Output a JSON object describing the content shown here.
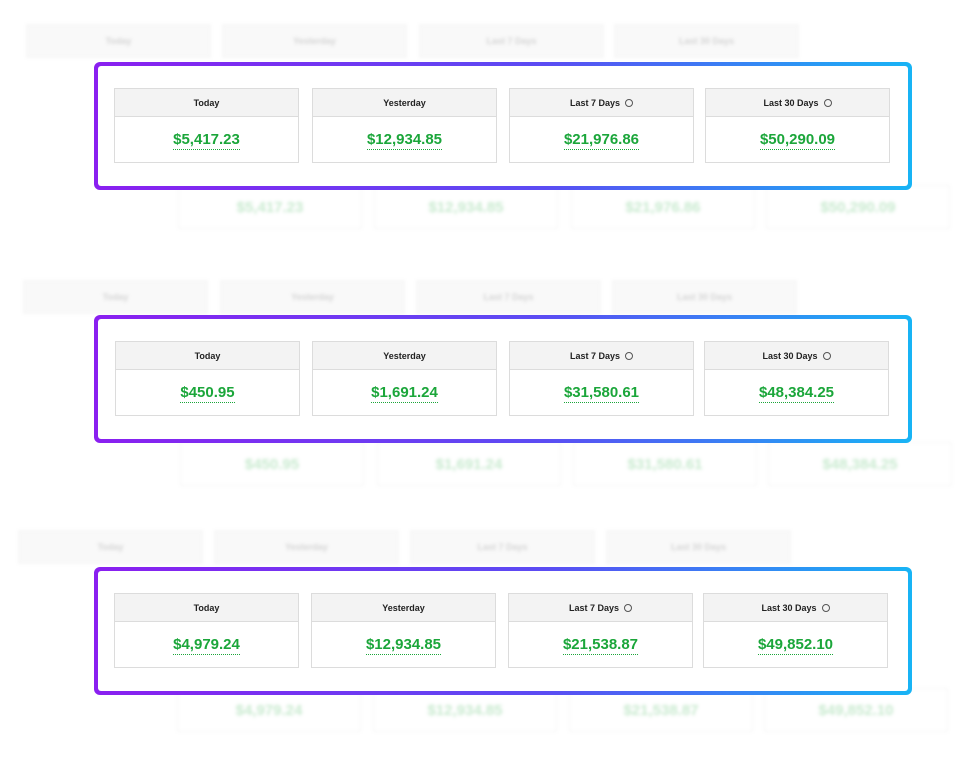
{
  "panels": [
    {
      "cards": [
        {
          "label": "Today",
          "value": "$5,417.23",
          "has_clock_icon": false
        },
        {
          "label": "Yesterday",
          "value": "$12,934.85",
          "has_clock_icon": false
        },
        {
          "label": "Last 7 Days",
          "value": "$21,976.86",
          "has_clock_icon": true
        },
        {
          "label": "Last 30 Days",
          "value": "$50,290.09",
          "has_clock_icon": true
        }
      ]
    },
    {
      "cards": [
        {
          "label": "Today",
          "value": "$450.95",
          "has_clock_icon": false
        },
        {
          "label": "Yesterday",
          "value": "$1,691.24",
          "has_clock_icon": false
        },
        {
          "label": "Last 7 Days",
          "value": "$31,580.61",
          "has_clock_icon": true
        },
        {
          "label": "Last 30 Days",
          "value": "$48,384.25",
          "has_clock_icon": true
        }
      ]
    },
    {
      "cards": [
        {
          "label": "Today",
          "value": "$4,979.24",
          "has_clock_icon": false
        },
        {
          "label": "Yesterday",
          "value": "$12,934.85",
          "has_clock_icon": false
        },
        {
          "label": "Last 7 Days",
          "value": "$21,538.87",
          "has_clock_icon": true
        },
        {
          "label": "Last 30 Days",
          "value": "$49,852.10",
          "has_clock_icon": true
        }
      ]
    }
  ],
  "colors": {
    "value_green": "#1ba63a",
    "frame_gradient_start": "#8a1ff0",
    "frame_gradient_end": "#18b4f5",
    "header_bg": "#f3f3f3"
  },
  "icons": {
    "clock": "clock-icon"
  }
}
